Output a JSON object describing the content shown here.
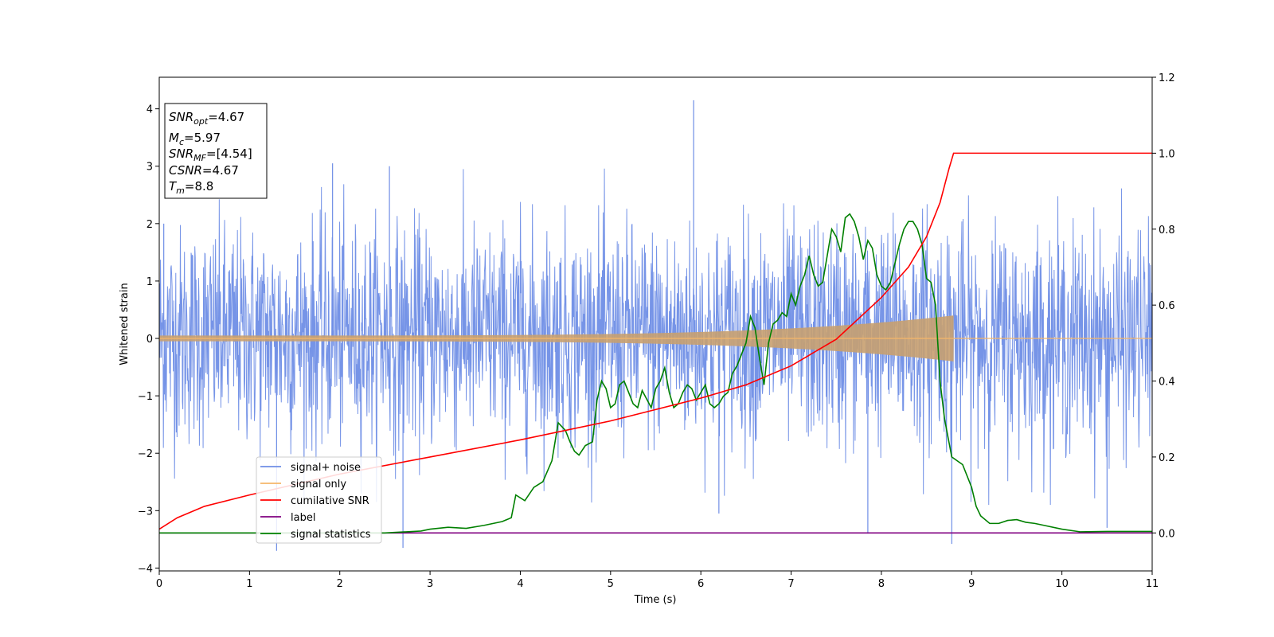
{
  "colors": {
    "noise": "#6f8ee6",
    "signal": "#f5b66a",
    "cumsnr": "#ff0000",
    "label": "#800080",
    "stats": "#008000"
  },
  "infobox": {
    "snr_opt_sym": "SNR",
    "snr_opt_sub": "opt",
    "snr_opt_val": "=4.67",
    "mc_sym": "M",
    "mc_sub": "c",
    "mc_val": "=5.97",
    "snr_mf_sym": "SNR",
    "snr_mf_sub": "MF",
    "snr_mf_val": "=[4.54]",
    "csnr_sym": "CSNR",
    "csnr_val": "=4.67",
    "tm_sym": "T",
    "tm_sub": "m",
    "tm_val": "=8.8"
  },
  "chart_data": {
    "type": "line",
    "title": "",
    "xlabel": "Time (s)",
    "ylabel": "Whitened strain",
    "y2label": "",
    "xlim": [
      0,
      11
    ],
    "ylim": [
      -4.05,
      4.55
    ],
    "y2lim": [
      -0.1,
      1.2
    ],
    "xticks": [
      "0",
      "1",
      "2",
      "3",
      "4",
      "5",
      "6",
      "7",
      "8",
      "9",
      "10",
      "11"
    ],
    "yticks": [
      "−4",
      "−3",
      "−2",
      "−1",
      "0",
      "1",
      "2",
      "3",
      "4"
    ],
    "y2ticks": [
      "0.0",
      "0.2",
      "0.4",
      "0.6",
      "0.8",
      "1.0",
      "1.2"
    ],
    "legend": {
      "placement": "lower-left",
      "entries": [
        "signal+ noise",
        "signal only",
        "cumilative SNR",
        "label",
        "signal statistics"
      ]
    },
    "noise": {
      "name": "signal+ noise",
      "axis": "left",
      "description_ranges": {
        "typical_min": -2.5,
        "typical_max": 2.5
      },
      "spikes": [
        [
          5.92,
          4.15
        ],
        [
          1.92,
          3.05
        ],
        [
          2.7,
          -3.65
        ],
        [
          8.78,
          -3.58
        ],
        [
          7.85,
          -3.4
        ],
        [
          1.3,
          -3.7
        ],
        [
          10.5,
          -3.3
        ],
        [
          6.2,
          -3.05
        ],
        [
          2.55,
          3.0
        ],
        [
          0.05,
          2.0
        ]
      ]
    },
    "signal": {
      "name": "signal only",
      "axis": "left",
      "t_merge": 8.8,
      "amp_end": 0.4,
      "amp_start": 0.05
    },
    "cumsnr": {
      "name": "cumilative SNR",
      "axis": "right",
      "points": [
        [
          0,
          0.01
        ],
        [
          0.2,
          0.04
        ],
        [
          0.5,
          0.07
        ],
        [
          1,
          0.1
        ],
        [
          2,
          0.155
        ],
        [
          3,
          0.2
        ],
        [
          4,
          0.245
        ],
        [
          5,
          0.295
        ],
        [
          6,
          0.355
        ],
        [
          6.5,
          0.39
        ],
        [
          7,
          0.44
        ],
        [
          7.5,
          0.51
        ],
        [
          8,
          0.62
        ],
        [
          8.3,
          0.7
        ],
        [
          8.5,
          0.78
        ],
        [
          8.65,
          0.87
        ],
        [
          8.75,
          0.96
        ],
        [
          8.8,
          1.0
        ],
        [
          11,
          1.0
        ]
      ]
    },
    "label_series": {
      "name": "label",
      "axis": "right",
      "points": [
        [
          0,
          0.0
        ],
        [
          11,
          0.0
        ]
      ]
    },
    "stats": {
      "name": "signal statistics",
      "axis": "right",
      "points": [
        [
          0,
          0.0
        ],
        [
          2.5,
          0.0
        ],
        [
          2.9,
          0.005
        ],
        [
          3.0,
          0.01
        ],
        [
          3.2,
          0.015
        ],
        [
          3.4,
          0.012
        ],
        [
          3.6,
          0.02
        ],
        [
          3.8,
          0.03
        ],
        [
          3.9,
          0.04
        ],
        [
          3.95,
          0.1
        ],
        [
          4.05,
          0.085
        ],
        [
          4.15,
          0.12
        ],
        [
          4.25,
          0.135
        ],
        [
          4.35,
          0.19
        ],
        [
          4.42,
          0.29
        ],
        [
          4.5,
          0.27
        ],
        [
          4.55,
          0.24
        ],
        [
          4.6,
          0.215
        ],
        [
          4.65,
          0.205
        ],
        [
          4.72,
          0.23
        ],
        [
          4.8,
          0.24
        ],
        [
          4.85,
          0.35
        ],
        [
          4.9,
          0.4
        ],
        [
          4.95,
          0.38
        ],
        [
          5.0,
          0.33
        ],
        [
          5.05,
          0.34
        ],
        [
          5.1,
          0.39
        ],
        [
          5.15,
          0.4
        ],
        [
          5.2,
          0.37
        ],
        [
          5.25,
          0.34
        ],
        [
          5.3,
          0.33
        ],
        [
          5.35,
          0.375
        ],
        [
          5.45,
          0.33
        ],
        [
          5.5,
          0.38
        ],
        [
          5.55,
          0.4
        ],
        [
          5.6,
          0.435
        ],
        [
          5.65,
          0.37
        ],
        [
          5.7,
          0.33
        ],
        [
          5.75,
          0.34
        ],
        [
          5.8,
          0.37
        ],
        [
          5.85,
          0.39
        ],
        [
          5.9,
          0.38
        ],
        [
          5.95,
          0.35
        ],
        [
          6.0,
          0.37
        ],
        [
          6.05,
          0.39
        ],
        [
          6.1,
          0.34
        ],
        [
          6.15,
          0.33
        ],
        [
          6.2,
          0.34
        ],
        [
          6.25,
          0.36
        ],
        [
          6.3,
          0.37
        ],
        [
          6.35,
          0.42
        ],
        [
          6.4,
          0.44
        ],
        [
          6.5,
          0.5
        ],
        [
          6.55,
          0.57
        ],
        [
          6.6,
          0.54
        ],
        [
          6.65,
          0.46
        ],
        [
          6.7,
          0.39
        ],
        [
          6.75,
          0.5
        ],
        [
          6.8,
          0.55
        ],
        [
          6.85,
          0.56
        ],
        [
          6.9,
          0.58
        ],
        [
          6.95,
          0.57
        ],
        [
          7.0,
          0.63
        ],
        [
          7.05,
          0.6
        ],
        [
          7.1,
          0.65
        ],
        [
          7.15,
          0.68
        ],
        [
          7.2,
          0.73
        ],
        [
          7.25,
          0.68
        ],
        [
          7.3,
          0.65
        ],
        [
          7.35,
          0.66
        ],
        [
          7.4,
          0.73
        ],
        [
          7.45,
          0.8
        ],
        [
          7.5,
          0.78
        ],
        [
          7.55,
          0.74
        ],
        [
          7.6,
          0.83
        ],
        [
          7.65,
          0.84
        ],
        [
          7.7,
          0.82
        ],
        [
          7.75,
          0.78
        ],
        [
          7.8,
          0.72
        ],
        [
          7.85,
          0.77
        ],
        [
          7.9,
          0.75
        ],
        [
          7.95,
          0.68
        ],
        [
          8.0,
          0.65
        ],
        [
          8.05,
          0.64
        ],
        [
          8.1,
          0.66
        ],
        [
          8.15,
          0.71
        ],
        [
          8.2,
          0.76
        ],
        [
          8.25,
          0.8
        ],
        [
          8.3,
          0.82
        ],
        [
          8.35,
          0.82
        ],
        [
          8.4,
          0.8
        ],
        [
          8.45,
          0.76
        ],
        [
          8.5,
          0.67
        ],
        [
          8.55,
          0.66
        ],
        [
          8.6,
          0.6
        ],
        [
          8.65,
          0.4
        ],
        [
          8.7,
          0.3
        ],
        [
          8.78,
          0.2
        ],
        [
          8.9,
          0.18
        ],
        [
          9.0,
          0.12
        ],
        [
          9.05,
          0.07
        ],
        [
          9.1,
          0.045
        ],
        [
          9.2,
          0.025
        ],
        [
          9.3,
          0.025
        ],
        [
          9.4,
          0.033
        ],
        [
          9.5,
          0.035
        ],
        [
          9.6,
          0.028
        ],
        [
          9.7,
          0.025
        ],
        [
          9.8,
          0.02
        ],
        [
          10.0,
          0.01
        ],
        [
          10.2,
          0.003
        ],
        [
          10.5,
          0.004
        ],
        [
          11,
          0.004
        ]
      ]
    }
  }
}
